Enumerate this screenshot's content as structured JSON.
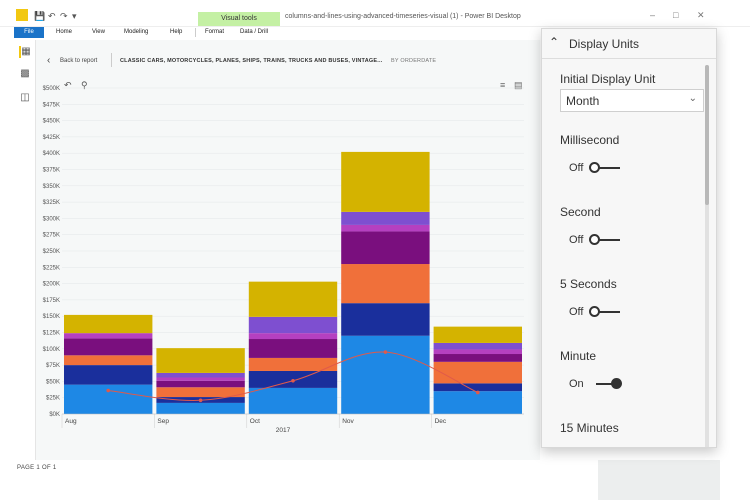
{
  "window": {
    "contextual_tab": "Visual tools",
    "title": "columns-and-lines-using-advanced-timeseries-visual (1) - Power BI Desktop"
  },
  "ribbon": {
    "tabs": [
      "File",
      "Home",
      "View",
      "Modeling",
      "Help",
      "Format",
      "Data / Drill"
    ]
  },
  "report": {
    "back_label": "Back to report",
    "visual_title": "CLASSIC CARS, MOTORCYCLES, PLANES, SHIPS, TRAINS, TRUCKS AND BUSES, VINTAGE...",
    "visual_subtitle": "BY ORDERDATE",
    "page_label": "PAGE 1 OF 1"
  },
  "panel": {
    "title": "Display Units",
    "initial_label": "Initial Display Unit",
    "initial_value": "Month",
    "settings": [
      {
        "label": "Millisecond",
        "state": "Off"
      },
      {
        "label": "Second",
        "state": "Off"
      },
      {
        "label": "5 Seconds",
        "state": "Off"
      },
      {
        "label": "Minute",
        "state": "On"
      },
      {
        "label": "15 Minutes",
        "state": ""
      }
    ]
  },
  "colors": {
    "accent": "#f2c811",
    "file_tab": "#1a73c8",
    "line": "#e05a4a"
  },
  "chart_data": {
    "type": "bar",
    "categories": [
      "Aug",
      "Sep",
      "Oct",
      "Nov",
      "Dec"
    ],
    "x_group_label": "2017",
    "yticks": [
      "$0K",
      "$25K",
      "$50K",
      "$75K",
      "$100K",
      "$125K",
      "$150K",
      "$175K",
      "$200K",
      "$225K",
      "$250K",
      "$275K",
      "$300K",
      "$325K",
      "$350K",
      "$375K",
      "$400K",
      "$425K",
      "$450K",
      "$475K",
      "$500K"
    ],
    "ylim": [
      0,
      500
    ],
    "stacked": true,
    "series": [
      {
        "color": "#1e88e5",
        "values": [
          45,
          17,
          40,
          120,
          35
        ]
      },
      {
        "color": "#1a2f9c",
        "values": [
          30,
          9,
          26,
          50,
          12
        ]
      },
      {
        "color": "#f0703a",
        "values": [
          15,
          15,
          20,
          60,
          33
        ]
      },
      {
        "color": "#7a0f7e",
        "values": [
          26,
          10,
          29,
          50,
          12
        ]
      },
      {
        "color": "#b540c0",
        "values": [
          8,
          5,
          9,
          10,
          7
        ]
      },
      {
        "color": "#7e4fd0",
        "values": [
          0,
          7,
          25,
          20,
          10
        ]
      },
      {
        "color": "#d4b300",
        "values": [
          28,
          38,
          54,
          92,
          25
        ]
      }
    ],
    "line_series": {
      "values": [
        36,
        21,
        51,
        95,
        33
      ]
    }
  }
}
